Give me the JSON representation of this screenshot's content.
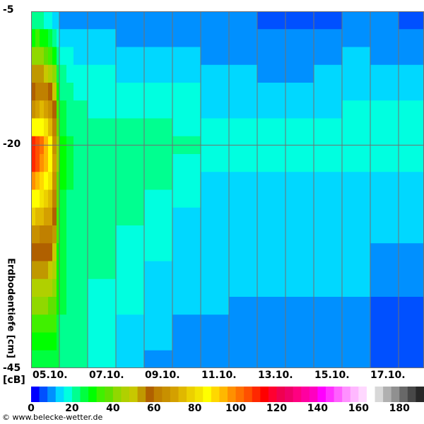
{
  "chart_data": {
    "type": "heatmap",
    "ylabel": "Erdbodentiefe [cm]",
    "unit_label": "[cB]",
    "y_ticks": [
      "-5",
      "-20",
      "-45"
    ],
    "ylim": [
      -45,
      -5
    ],
    "x_ticks": [
      "05.10.",
      "07.10.",
      "09.10.",
      "11.10.",
      "13.10.",
      "15.10.",
      "17.10."
    ],
    "x_range_days": [
      0,
      13.9
    ],
    "x_origin": "05.10.",
    "depth_rows_cm": [
      -5,
      -7,
      -9,
      -11,
      -13,
      -15,
      -17,
      -19,
      -21,
      -23,
      -25,
      -27,
      -29,
      -31,
      -33,
      -35,
      -37,
      -39,
      -41,
      -43
    ],
    "row_height_cm": 2,
    "columns": [
      {
        "t": [
          0,
          0.15
        ],
        "v": [
          22,
          30,
          40,
          52,
          58,
          66,
          84,
          110,
          108,
          96,
          86,
          76,
          64,
          56,
          52,
          46,
          40,
          34,
          30,
          26
        ]
      },
      {
        "t": [
          0.15,
          0.3
        ],
        "v": [
          22,
          32,
          42,
          54,
          60,
          70,
          86,
          106,
          104,
          94,
          84,
          74,
          64,
          58,
          52,
          46,
          40,
          34,
          30,
          26
        ]
      },
      {
        "t": [
          0.3,
          0.45
        ],
        "v": [
          22,
          30,
          40,
          52,
          60,
          72,
          86,
          100,
          98,
          90,
          82,
          72,
          62,
          58,
          52,
          46,
          40,
          34,
          30,
          26
        ]
      },
      {
        "t": [
          0.45,
          0.6
        ],
        "v": [
          18,
          28,
          38,
          50,
          60,
          70,
          82,
          94,
          92,
          86,
          78,
          70,
          62,
          58,
          52,
          46,
          40,
          34,
          30,
          26
        ]
      },
      {
        "t": [
          0.6,
          0.75
        ],
        "v": [
          18,
          26,
          34,
          46,
          56,
          64,
          74,
          84,
          84,
          80,
          74,
          68,
          62,
          56,
          50,
          44,
          38,
          34,
          30,
          26
        ]
      },
      {
        "t": [
          0.75,
          0.9
        ],
        "v": [
          14,
          22,
          30,
          40,
          48,
          58,
          62,
          66,
          68,
          66,
          62,
          58,
          54,
          50,
          44,
          40,
          36,
          32,
          28,
          26
        ]
      },
      {
        "t": [
          0.9,
          1.0
        ],
        "v": [
          14,
          18,
          22,
          26,
          30,
          34,
          38,
          40,
          40,
          38,
          36,
          34,
          32,
          30,
          30,
          28,
          28,
          26,
          26,
          24
        ]
      },
      {
        "t": [
          1.0,
          1.25
        ],
        "v": [
          10,
          14,
          18,
          20,
          22,
          24,
          26,
          28,
          28,
          28,
          26,
          26,
          26,
          26,
          24,
          24,
          24,
          22,
          22,
          22
        ]
      },
      {
        "t": [
          1.25,
          1.5
        ],
        "v": [
          10,
          14,
          18,
          18,
          20,
          22,
          22,
          24,
          24,
          24,
          22,
          22,
          22,
          22,
          22,
          22,
          22,
          22,
          22,
          22
        ]
      },
      {
        "t": [
          1.5,
          2
        ],
        "v": [
          10,
          14,
          14,
          18,
          18,
          22,
          22,
          22,
          22,
          22,
          22,
          22,
          22,
          22,
          22,
          22,
          22,
          22,
          22,
          22
        ]
      },
      {
        "t": [
          2,
          3
        ],
        "v": [
          10,
          14,
          14,
          18,
          18,
          18,
          22,
          22,
          22,
          22,
          22,
          22,
          22,
          22,
          22,
          18,
          18,
          18,
          18,
          18
        ]
      },
      {
        "t": [
          3,
          4
        ],
        "v": [
          10,
          10,
          14,
          14,
          18,
          18,
          22,
          22,
          22,
          22,
          22,
          22,
          18,
          18,
          18,
          18,
          18,
          14,
          14,
          14
        ]
      },
      {
        "t": [
          4,
          5
        ],
        "v": [
          10,
          10,
          14,
          14,
          18,
          18,
          22,
          22,
          22,
          22,
          18,
          18,
          18,
          18,
          14,
          14,
          14,
          14,
          14,
          10
        ]
      },
      {
        "t": [
          5,
          6
        ],
        "v": [
          10,
          10,
          14,
          14,
          18,
          18,
          18,
          22,
          18,
          18,
          18,
          14,
          14,
          14,
          14,
          14,
          14,
          10,
          10,
          10
        ]
      },
      {
        "t": [
          6,
          7
        ],
        "v": [
          8,
          10,
          10,
          14,
          14,
          14,
          18,
          18,
          18,
          14,
          14,
          14,
          14,
          14,
          14,
          14,
          14,
          10,
          10,
          10
        ]
      },
      {
        "t": [
          7,
          8
        ],
        "v": [
          8,
          10,
          10,
          14,
          14,
          14,
          18,
          18,
          18,
          14,
          14,
          14,
          14,
          14,
          14,
          14,
          10,
          10,
          10,
          10
        ]
      },
      {
        "t": [
          8,
          9
        ],
        "v": [
          6,
          10,
          10,
          10,
          14,
          14,
          18,
          18,
          18,
          14,
          14,
          14,
          14,
          14,
          14,
          14,
          10,
          10,
          10,
          10
        ]
      },
      {
        "t": [
          9,
          10
        ],
        "v": [
          6,
          10,
          10,
          10,
          14,
          14,
          18,
          18,
          18,
          14,
          14,
          14,
          14,
          14,
          14,
          14,
          10,
          10,
          10,
          10
        ]
      },
      {
        "t": [
          10,
          11
        ],
        "v": [
          6,
          10,
          10,
          14,
          14,
          14,
          18,
          18,
          18,
          14,
          14,
          14,
          14,
          14,
          14,
          14,
          10,
          10,
          10,
          10
        ]
      },
      {
        "t": [
          11,
          12
        ],
        "v": [
          10,
          10,
          14,
          14,
          14,
          18,
          18,
          18,
          18,
          14,
          14,
          14,
          14,
          14,
          14,
          14,
          10,
          10,
          10,
          10
        ]
      },
      {
        "t": [
          12,
          13
        ],
        "v": [
          10,
          10,
          10,
          14,
          14,
          18,
          18,
          18,
          18,
          14,
          14,
          14,
          14,
          10,
          10,
          10,
          6,
          6,
          6,
          6
        ]
      },
      {
        "t": [
          13,
          13.9
        ],
        "v": [
          6,
          10,
          10,
          14,
          14,
          18,
          18,
          18,
          18,
          14,
          14,
          14,
          14,
          10,
          10,
          10,
          6,
          6,
          6,
          6
        ]
      }
    ],
    "colorbar": {
      "step": 4,
      "ticks": [
        "0",
        "20",
        "40",
        "60",
        "80",
        "100",
        "120",
        "140",
        "160",
        "180"
      ],
      "colors": [
        "#0000ff",
        "#0050ff",
        "#0090ff",
        "#00d8ff",
        "#00ffe0",
        "#00ff90",
        "#00ff40",
        "#00ff00",
        "#40f000",
        "#60e000",
        "#90d800",
        "#b0d000",
        "#c8c800",
        "#c09800",
        "#b06000",
        "#c08000",
        "#c89000",
        "#d4a000",
        "#e0b800",
        "#ecd000",
        "#f4e400",
        "#ffff00",
        "#ffd800",
        "#ffb800",
        "#ff9000",
        "#ff7000",
        "#ff5000",
        "#ff2800",
        "#ff0000",
        "#ff0030",
        "#f00050",
        "#f00068",
        "#ff0080",
        "#ff00a0",
        "#ff00c0",
        "#ff00ff",
        "#ff30ff",
        "#ff60ff",
        "#ff90ff",
        "#ffb8ff",
        "#ffd8ff",
        "#ffffff",
        "#d8d8d8",
        "#b0b0b0",
        "#909090",
        "#686868",
        "#484848",
        "#282828"
      ]
    },
    "grid_color": "#707070"
  },
  "credit": "© www.belecke-wetter.de"
}
